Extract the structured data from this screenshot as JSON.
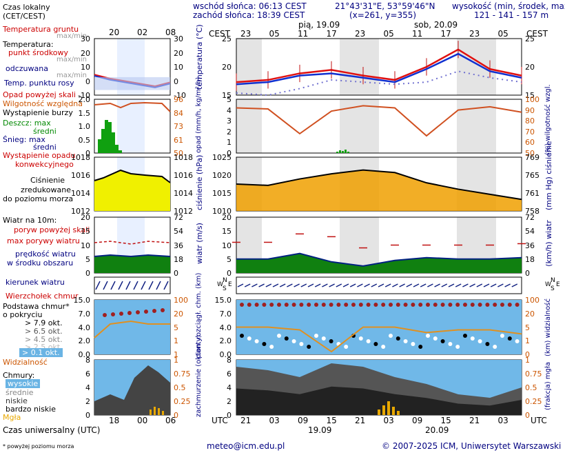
{
  "header": {
    "sunrise": "wschód słońca: 06:13 CEST",
    "sunset": "zachód słońca: 18:39 CEST",
    "coords": "21°43'31\"E, 53°59'46\"N",
    "grid": "(x=261,  y=355)",
    "elevation_label": "wysokość (min, środek, max)",
    "elevation_values": "121 - 141 - 157 m",
    "date1": "pią, 19.09",
    "date2": "sob, 20.09",
    "date_bottom1": "19.09",
    "date_bottom2": "20.09",
    "cest": "CEST",
    "utc": "UTC",
    "top_hours": [
      "23",
      "05",
      "11",
      "17",
      "23",
      "05",
      "11",
      "17",
      "23",
      "05"
    ],
    "bottom_hours": [
      "21",
      "03",
      "09",
      "15",
      "21",
      "03",
      "09",
      "15",
      "21",
      "03"
    ]
  },
  "legend": {
    "time_local": "Czas lokalny",
    "time_local2": "(CET/CEST)",
    "legend_top_hours": [
      "20",
      "02",
      "08"
    ],
    "legend_bottom_hours": [
      "18",
      "00",
      "06"
    ],
    "time_utc": "Czas uniwersalny (UTC)",
    "footnote": "* powyżej poziomu morza",
    "soil_temp": "Temperatura gruntu",
    "maxmin": "max/min",
    "temperature": "Temperatura:",
    "mid_point": "punkt środkowy",
    "maxmin2": "max/min",
    "feels": "odczuwana",
    "maxmin3": "max/min",
    "dew": "Temp. punktu rosy",
    "rain_over": "Opad powyżej skali",
    "humidity": "Wilgotność względna",
    "storm": "Wystąpienie burzy",
    "rain": "Deszcz: max",
    "rain_mid": "średni",
    "snow": "Śnieg: max",
    "snow_mid": "średni",
    "conv": "Wystąpienie opadu",
    "conv2": "konwekcyjnego",
    "pressure1": "Ciśnienie",
    "pressure2": "zredukowane",
    "pressure3": "do poziomu morza",
    "wind10": "Wiatr na 10m:",
    "gust_over": "poryw powyżej skali",
    "max_gust": "max porywy wiatru",
    "wind_speed": "prędkość wiatru",
    "wind_area": "w środku obszaru",
    "wind_dir": "kierunek wiatru",
    "cloud_top": "Wierzchołek chmur",
    "cloud_base1": "Podstawa chmur*",
    "cloud_base2": "o pokryciu",
    "okt79": "> 7.9 okt.",
    "okt65": "> 6.5 okt.",
    "okt45": "> 4.5 okt.",
    "okt25": "> 2.5 okt.",
    "okt01": "> 0.1 okt.",
    "visibility": "Widzialność",
    "clouds": "Chmury:",
    "high": "wysokie",
    "mid": "średnie",
    "low": "niskie",
    "very_low": "bardzo niskie",
    "fog": "Mgła"
  },
  "axes": {
    "temp_ylabel": "temperatura (°C)",
    "rain_ylabel": "opad (mm/h, kg/m²/h)",
    "hum_ylabel": "(%) wilgotność wzgl.",
    "press_ylabel": "ciśnienie (hPa)",
    "press_mm_ylabel": "(mm Hg) ciśnienie",
    "wind_ylabel": "wiatr (m/s)",
    "wind_kmh_ylabel": "(km/h) wiatr",
    "cloud_ylabel": "pion. rozciągł. chm. (km)",
    "vis_ylabel": "(km) widzialność",
    "cover_ylabel": "zachmurzenie (oktanty)",
    "fogfrac_ylabel": "(frakcja) mgła",
    "wind_dir_labels": [
      "N",
      "W",
      "E",
      "S"
    ]
  },
  "ticks": {
    "temp_left": [
      "25",
      "20",
      "15"
    ],
    "temp_right": [
      "25",
      "20",
      "15"
    ],
    "rain_left": [
      "5",
      "4",
      "3",
      "2",
      "1",
      "0"
    ],
    "hum_right": [
      "100",
      "90",
      "80",
      "70",
      "60",
      "50"
    ],
    "press_left": [
      "1025",
      "1020",
      "1015",
      "1010"
    ],
    "press_right": [
      "769",
      "765",
      "761",
      "758"
    ],
    "wind_left": [
      "20",
      "15",
      "10",
      "5",
      "0"
    ],
    "wind_right": [
      "72",
      "54",
      "36",
      "18",
      "0"
    ],
    "cloud_left": [
      "15.0",
      "7.0",
      "4.0",
      "2.0",
      "0.0"
    ],
    "vis_right": [
      "100",
      "20",
      "5",
      "1",
      "0"
    ],
    "cover_left": [
      "8",
      "6",
      "4",
      "2",
      "0"
    ],
    "fog_right": [
      "1",
      "0.75",
      "0.5",
      "0.25",
      "0"
    ],
    "legend_temp_left": [
      "30",
      "20",
      "10",
      "0",
      "-10"
    ],
    "legend_temp_right": [
      "30",
      "20",
      "10",
      "0",
      "-10"
    ],
    "legend_rain_left": [
      "2.0",
      "1.5",
      "1.0",
      "0.5",
      "0"
    ],
    "legend_hum_right": [
      "96",
      "84",
      "73",
      "61",
      "50"
    ],
    "legend_press_left": [
      "1018",
      "1016",
      "1014",
      "1012"
    ],
    "legend_press_right": [
      "1018",
      "1016",
      "1014",
      "1012"
    ],
    "legend_wind_left": [
      "20",
      "15",
      "10",
      "5",
      "0"
    ],
    "legend_wind_right": [
      "72",
      "54",
      "36",
      "18",
      "0"
    ],
    "legend_cloud_left": [
      "15.0",
      "7.0",
      "4.0",
      "2.0",
      "0.0"
    ],
    "legend_vis_right": [
      "100",
      "20",
      "5",
      "1",
      "1"
    ],
    "legend_cover_left": [
      "8",
      "6",
      "4",
      "2",
      "0"
    ],
    "legend_fog_right": [
      "1",
      "0.75",
      "0.5",
      "0.25",
      "0"
    ]
  },
  "footer": {
    "email": "meteo@icm.edu.pl",
    "copyright": "© 2007-2025 ICM, Uniwersytet Warszawski"
  },
  "colors": {
    "temp_red": "#e01010",
    "feels_blue": "#1030d0",
    "dew_purple": "#7070d0",
    "humidity": "#d05020",
    "pressure_fill": "#f0a000",
    "wind_green": "#108010",
    "wind_blue": "#1040a0",
    "cloud_top_red": "#a02020",
    "vis_orange": "#e09020",
    "cloud_bg": "#70b8e8"
  },
  "chart_data": [
    {
      "type": "line",
      "name": "temperature",
      "x": [
        "19.09 00",
        "19.09 06",
        "19.09 12",
        "19.09 18",
        "20.09 00",
        "20.09 06",
        "20.09 12",
        "20.09 18",
        "21.09 00",
        "21.09 06"
      ],
      "series": [
        {
          "values": [
            15.0,
            15.5,
            17.0,
            17.8,
            16.5,
            15.5,
            18.5,
            22.5,
            18.0,
            16.5
          ]
        },
        {
          "values": [
            14.5,
            15.0,
            16.5,
            17.0,
            16.0,
            15.0,
            18.0,
            21.5,
            17.5,
            16.0
          ]
        },
        {
          "values": [
            12.5,
            12.0,
            13.5,
            15.5,
            15.0,
            14.5,
            15.0,
            17.5,
            16.0,
            15.0
          ]
        }
      ],
      "ylim": [
        12,
        25
      ]
    },
    {
      "type": "line",
      "name": "humidity",
      "x": [
        "19.09 00",
        "19.09 06",
        "19.09 12",
        "19.09 18",
        "20.09 00",
        "20.09 06",
        "20.09 12",
        "20.09 18",
        "21.09 00",
        "21.09 06"
      ],
      "values": [
        92,
        91,
        68,
        89,
        94,
        92,
        66,
        90,
        93,
        88
      ],
      "ylim": [
        50,
        100
      ]
    },
    {
      "type": "area",
      "name": "pressure",
      "x": [
        "19.09 00",
        "19.09 06",
        "19.09 12",
        "19.09 18",
        "20.09 00",
        "20.09 06",
        "20.09 12",
        "20.09 18",
        "21.09 00",
        "21.09 06"
      ],
      "values": [
        1017.5,
        1017.0,
        1019.5,
        1021.5,
        1023.0,
        1022.0,
        1018.0,
        1015.5,
        1013.5,
        1011.5
      ],
      "ylim": [
        1007,
        1028
      ]
    },
    {
      "type": "area",
      "name": "wind",
      "x": [
        "19.09 00",
        "19.09 06",
        "19.09 12",
        "19.09 18",
        "20.09 00",
        "20.09 06",
        "20.09 12",
        "20.09 18",
        "21.09 00",
        "21.09 06"
      ],
      "series": [
        {
          "values": [
            5.0,
            5.0,
            7.0,
            4.0,
            2.5,
            4.5,
            5.5,
            5.0,
            5.0,
            5.5
          ]
        },
        {
          "values": [
            11.0,
            11.0,
            14.0,
            13.0,
            9.0,
            10.0,
            10.0,
            10.0,
            10.0,
            10.5
          ]
        }
      ],
      "ylim": [
        0,
        20
      ]
    },
    {
      "type": "line",
      "name": "visibility",
      "x": [
        "19.09 00",
        "19.09 06",
        "19.09 12",
        "19.09 18",
        "20.09 00",
        "20.09 06",
        "20.09 12",
        "20.09 18",
        "21.09 00",
        "21.09 06"
      ],
      "values": [
        20,
        20,
        18,
        2,
        20,
        20,
        16,
        18,
        18,
        15
      ],
      "ylim": [
        0,
        100
      ]
    },
    {
      "type": "area",
      "name": "cloud_cover",
      "x": [
        "19.09 00",
        "19.09 06",
        "19.09 12",
        "19.09 18",
        "20.09 00",
        "20.09 06",
        "20.09 12",
        "20.09 18",
        "21.09 00",
        "21.09 06"
      ],
      "values": [
        7.0,
        6.5,
        5.5,
        7.5,
        7.0,
        5.5,
        4.5,
        3.0,
        2.5,
        4.0
      ],
      "ylim": [
        0,
        8
      ]
    }
  ]
}
